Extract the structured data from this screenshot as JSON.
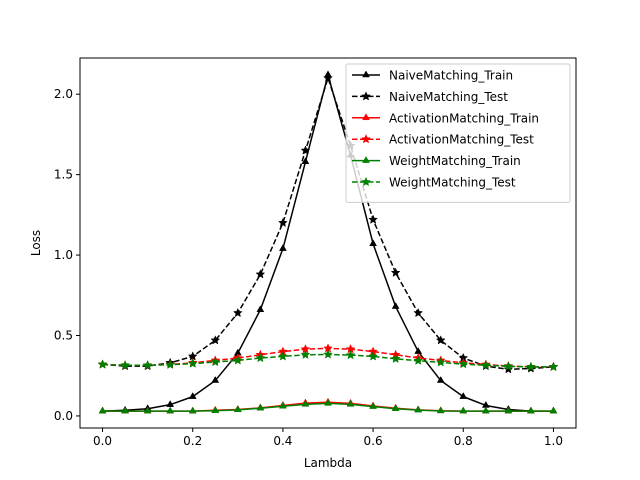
{
  "chart_data": {
    "type": "line",
    "xlabel": "Lambda",
    "ylabel": "Loss",
    "xlim": [
      -0.05,
      1.05
    ],
    "ylim": [
      -0.075,
      2.225
    ],
    "xticks": [
      "0.0",
      "0.2",
      "0.4",
      "0.6",
      "0.8",
      "1.0"
    ],
    "yticks": [
      "0.0",
      "0.5",
      "1.0",
      "1.5",
      "2.0"
    ],
    "grid": false,
    "legend_position": "top-right",
    "x": [
      0.0,
      0.05,
      0.1,
      0.15,
      0.2,
      0.25,
      0.3,
      0.35,
      0.4,
      0.45,
      0.5,
      0.55,
      0.6,
      0.65,
      0.7,
      0.75,
      0.8,
      0.85,
      0.9,
      0.95,
      1.0
    ],
    "series": [
      {
        "name": "NaiveMatching_Train",
        "color": "#000000",
        "dash": "solid",
        "values": [
          0.03,
          0.035,
          0.045,
          0.07,
          0.12,
          0.22,
          0.39,
          0.66,
          1.04,
          1.58,
          2.12,
          1.62,
          1.07,
          0.68,
          0.4,
          0.22,
          0.12,
          0.065,
          0.04,
          0.03,
          0.03
        ]
      },
      {
        "name": "NaiveMatching_Test",
        "color": "#000000",
        "dash": "dashed",
        "values": [
          0.32,
          0.31,
          0.31,
          0.33,
          0.37,
          0.47,
          0.64,
          0.88,
          1.2,
          1.65,
          2.1,
          1.68,
          1.22,
          0.89,
          0.64,
          0.47,
          0.36,
          0.31,
          0.29,
          0.295,
          0.305
        ]
      },
      {
        "name": "ActivationMatching_Train",
        "color": "#ff0000",
        "dash": "solid",
        "values": [
          0.03,
          0.03,
          0.03,
          0.03,
          0.03,
          0.035,
          0.04,
          0.05,
          0.065,
          0.08,
          0.085,
          0.078,
          0.062,
          0.048,
          0.038,
          0.032,
          0.03,
          0.03,
          0.03,
          0.03,
          0.03
        ]
      },
      {
        "name": "ActivationMatching_Test",
        "color": "#ff0000",
        "dash": "dashed",
        "values": [
          0.32,
          0.315,
          0.315,
          0.32,
          0.33,
          0.345,
          0.36,
          0.38,
          0.4,
          0.415,
          0.42,
          0.415,
          0.4,
          0.38,
          0.36,
          0.345,
          0.33,
          0.32,
          0.31,
          0.305,
          0.305
        ]
      },
      {
        "name": "WeightMatching_Train",
        "color": "#008000",
        "dash": "solid",
        "values": [
          0.03,
          0.03,
          0.03,
          0.03,
          0.03,
          0.032,
          0.038,
          0.048,
          0.06,
          0.072,
          0.078,
          0.072,
          0.058,
          0.045,
          0.036,
          0.031,
          0.03,
          0.03,
          0.03,
          0.03,
          0.03
        ]
      },
      {
        "name": "WeightMatching_Test",
        "color": "#008000",
        "dash": "dashed",
        "values": [
          0.32,
          0.315,
          0.315,
          0.318,
          0.325,
          0.335,
          0.345,
          0.36,
          0.37,
          0.38,
          0.382,
          0.378,
          0.37,
          0.355,
          0.343,
          0.333,
          0.322,
          0.315,
          0.308,
          0.305,
          0.305
        ]
      }
    ]
  }
}
